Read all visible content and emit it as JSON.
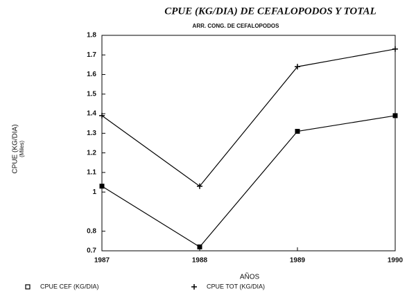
{
  "chart_data": {
    "type": "line",
    "title": "CPUE (KG/DIA) DE CEFALOPODOS Y TOTAL",
    "subtitle": "ARR. CONG. DE CEFALOPODOS",
    "x_label": "AÑOS",
    "y_label": "CPUE (KG/DIA)",
    "y_label_units": "(Miles)",
    "x": [
      1987,
      1988,
      1989,
      1990
    ],
    "xlim": [
      1987,
      1990
    ],
    "xticks": [
      1987,
      1988,
      1989,
      1990
    ],
    "ylim": [
      0.7,
      1.8
    ],
    "yticks": [
      0.7,
      0.8,
      1,
      1.1,
      1.2,
      1.3,
      1.4,
      1.5,
      1.6,
      1.7,
      1.8
    ],
    "grid": false,
    "legend_position": "bottom",
    "series": [
      {
        "name": "CPUE CEF (KG/DIA)",
        "color": "#000000",
        "marker": "square",
        "values": [
          1.03,
          0.72,
          1.31,
          1.39
        ]
      },
      {
        "name": "CPUE TOT (KG/DIA)",
        "color": "#000000",
        "marker": "plus",
        "values": [
          1.39,
          1.03,
          1.64,
          1.73
        ]
      }
    ]
  }
}
